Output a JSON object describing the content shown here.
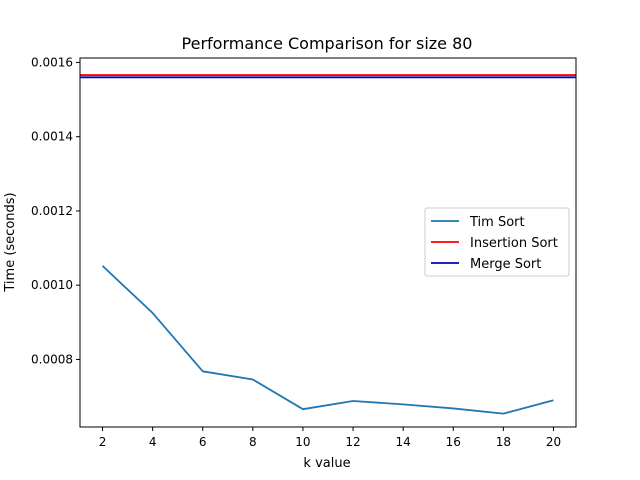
{
  "chart_data": {
    "type": "line",
    "title": "Performance Comparison for size 80",
    "xlabel": "k value",
    "ylabel": "Time (seconds)",
    "xlim": [
      1.1,
      20.9
    ],
    "ylim": [
      0.000618,
      0.001612
    ],
    "x_ticks": [
      2,
      4,
      6,
      8,
      10,
      12,
      14,
      16,
      18,
      20
    ],
    "y_ticks": [
      0.0008,
      0.001,
      0.0012,
      0.0014,
      0.0016
    ],
    "x_tick_labels": [
      "2",
      "4",
      "6",
      "8",
      "10",
      "12",
      "14",
      "16",
      "18",
      "20"
    ],
    "y_tick_labels": [
      "0.0008",
      "0.0010",
      "0.0012",
      "0.0014",
      "0.0016"
    ],
    "grid": false,
    "legend_position": "center-right",
    "series": [
      {
        "name": "Tim Sort",
        "kind": "line",
        "color": "#1f77b4",
        "x": [
          2,
          4,
          6,
          8,
          10,
          12,
          14,
          16,
          18,
          20
        ],
        "y": [
          0.001052,
          0.000925,
          0.000768,
          0.000746,
          0.000666,
          0.000688,
          0.000679,
          0.000668,
          0.000654,
          0.00069
        ]
      },
      {
        "name": "Insertion Sort",
        "kind": "hline",
        "color": "#ff0000",
        "y": 0.001566
      },
      {
        "name": "Merge Sort",
        "kind": "hline",
        "color": "#0000bb",
        "y": 0.00156
      }
    ]
  }
}
